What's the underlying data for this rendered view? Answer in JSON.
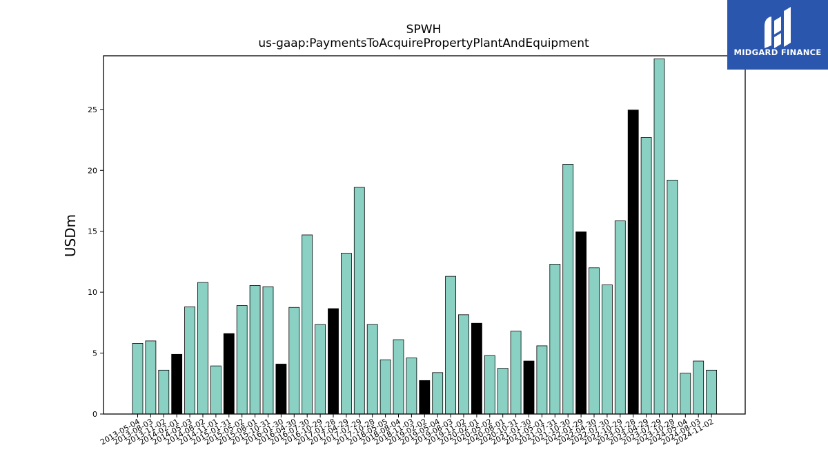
{
  "brand": {
    "name": "MIDGARD FINANCE",
    "color": "#2a57ad"
  },
  "chart_data": {
    "type": "bar",
    "title": "SPWH",
    "subtitle": "us-gaap:PaymentsToAcquirePropertyPlantAndEquipment",
    "xlabel": "",
    "ylabel": "USDm",
    "ylim": [
      0,
      29.4
    ],
    "yticks": [
      0,
      5,
      10,
      15,
      20,
      25
    ],
    "grid": false,
    "colors": {
      "quarter": "#8ad1c4",
      "fiscal_year": "#000000",
      "edge": "#000000"
    },
    "categories": [
      "2013-05-04",
      "2013-08-03",
      "2013-11-02",
      "2014-02-01",
      "2014-05-03",
      "2014-08-02",
      "2014-11-01",
      "2015-01-31",
      "2015-05-02",
      "2015-08-01",
      "2015-10-31",
      "2016-01-30",
      "2016-04-30",
      "2016-07-30",
      "2016-10-29",
      "2017-01-28",
      "2017-04-29",
      "2017-07-29",
      "2017-10-28",
      "2018-05-05",
      "2018-08-04",
      "2018-11-03",
      "2019-02-02",
      "2019-05-04",
      "2019-08-03",
      "2019-11-02",
      "2020-02-01",
      "2020-05-02",
      "2020-08-01",
      "2020-10-31",
      "2021-01-30",
      "2021-05-01",
      "2021-07-31",
      "2021-10-30",
      "2022-01-29",
      "2022-04-30",
      "2022-07-30",
      "2022-10-29",
      "2023-01-28",
      "2023-04-29",
      "2023-07-29",
      "2023-10-28",
      "2024-05-04",
      "2024-08-03",
      "2024-11-02"
    ],
    "values": [
      5.8,
      6.0,
      3.6,
      4.9,
      8.8,
      10.8,
      3.95,
      6.6,
      8.9,
      10.55,
      10.45,
      4.1,
      8.75,
      14.7,
      7.35,
      8.65,
      13.2,
      18.6,
      7.35,
      4.45,
      6.1,
      4.6,
      2.75,
      3.4,
      11.3,
      8.15,
      7.45,
      4.8,
      3.75,
      6.8,
      4.35,
      5.6,
      12.3,
      20.5,
      14.95,
      12.0,
      10.6,
      15.85,
      24.95,
      22.7,
      29.15,
      19.2,
      3.35,
      4.35,
      3.6
    ],
    "fiscal_year_end": [
      false,
      false,
      false,
      true,
      false,
      false,
      false,
      true,
      false,
      false,
      false,
      true,
      false,
      false,
      false,
      true,
      false,
      false,
      false,
      false,
      false,
      false,
      true,
      false,
      false,
      false,
      true,
      false,
      false,
      false,
      true,
      false,
      false,
      false,
      true,
      false,
      false,
      false,
      true,
      false,
      false,
      false,
      false,
      false,
      false
    ]
  }
}
